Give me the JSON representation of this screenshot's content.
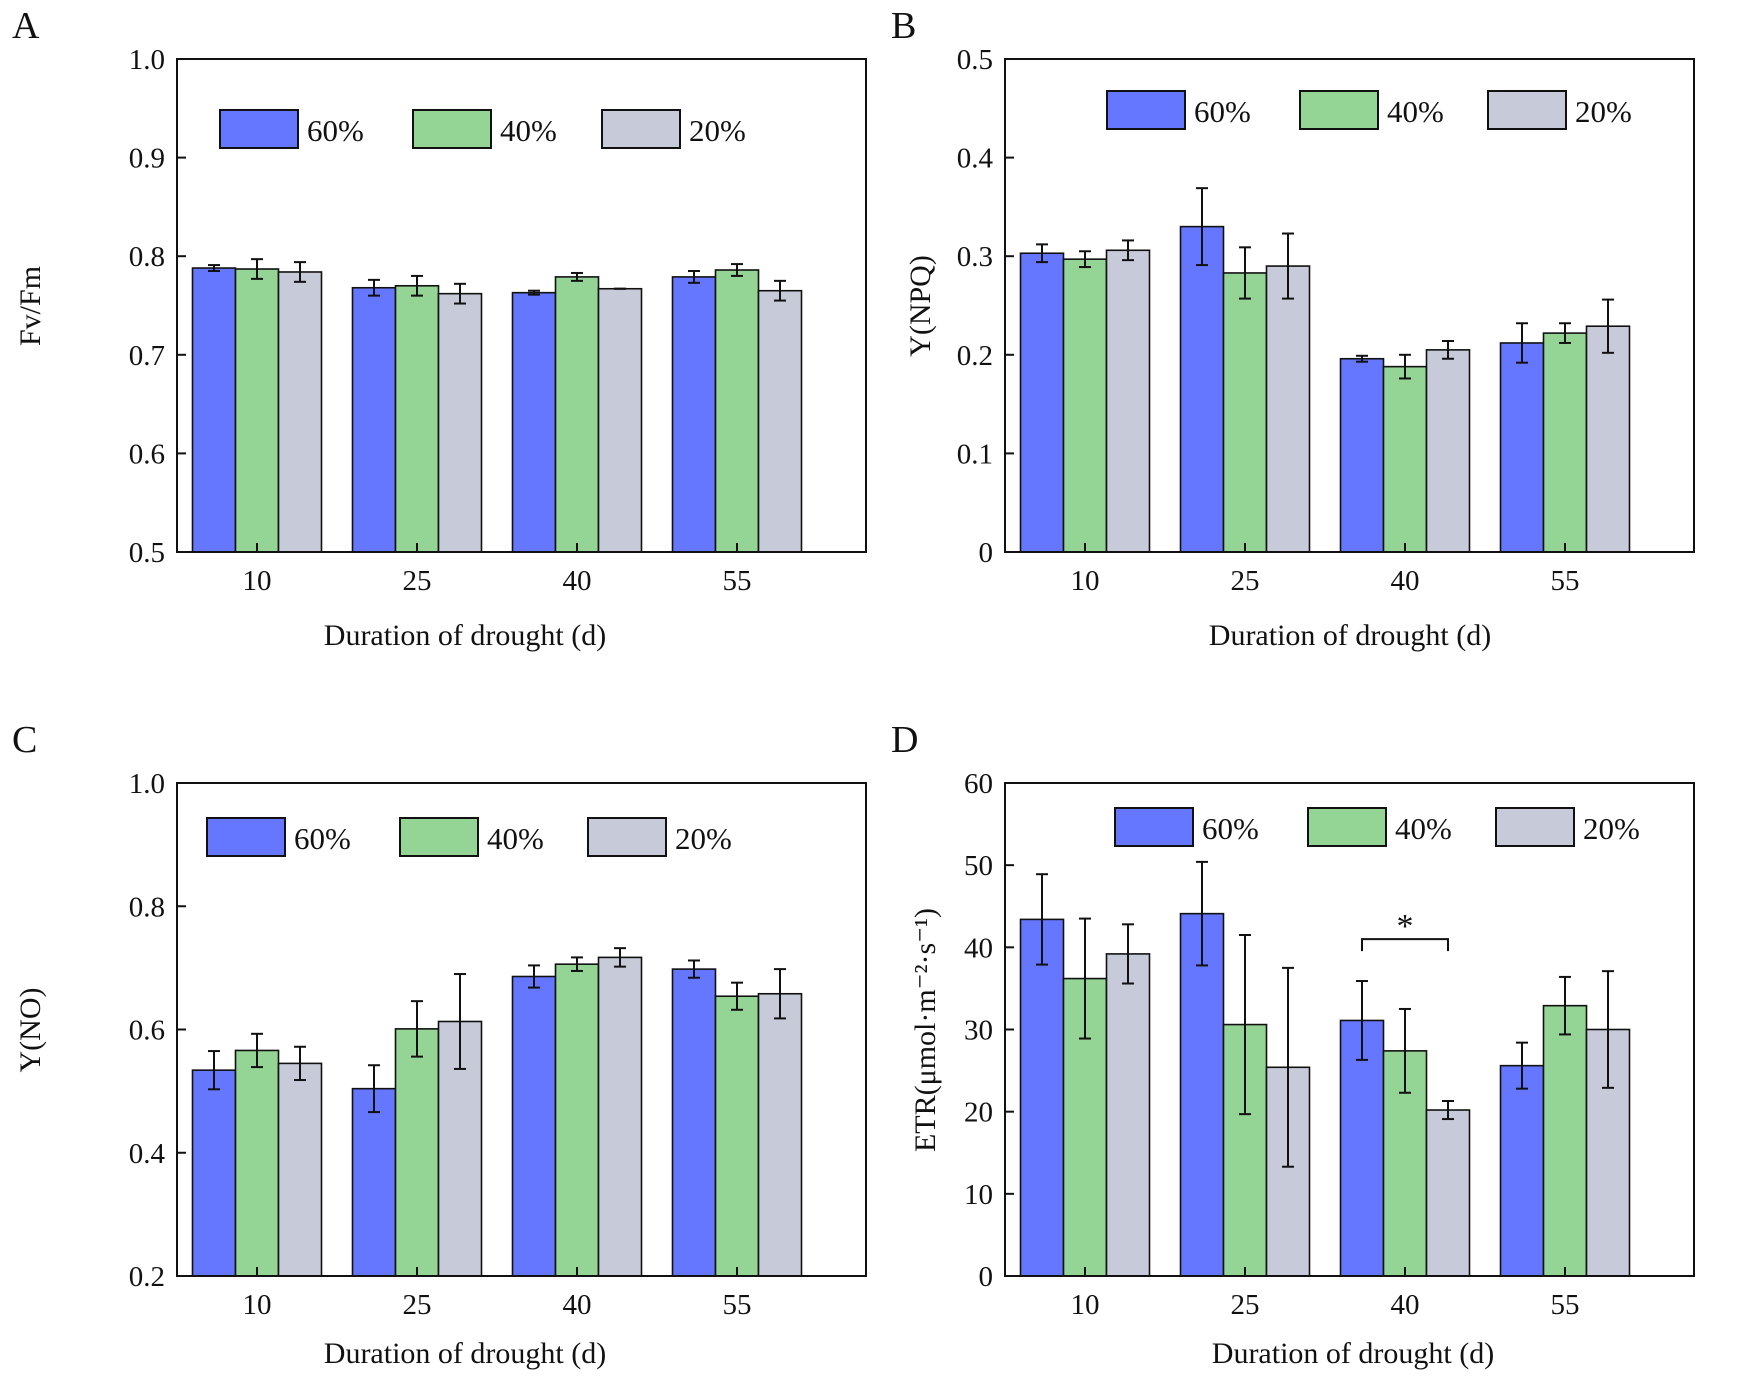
{
  "legend_labels": [
    "60%",
    "40%",
    "20%"
  ],
  "colors": {
    "s60": "#6677FF",
    "s40": "#94D494",
    "s20": "#C7CAD8",
    "axis": "#111111"
  },
  "chart_data": [
    {
      "panel": "A",
      "type": "bar",
      "categories": [
        "10",
        "25",
        "40",
        "55"
      ],
      "xlabel": "Duration of drought (d)",
      "ylabel": "Fv/Fm",
      "ylim": [
        0.5,
        1.0
      ],
      "yticks": [
        "0.5",
        "0.6",
        "0.7",
        "0.8",
        "0.9",
        "1.0"
      ],
      "legend_position": "top-center",
      "series": [
        {
          "name": "60%",
          "values": [
            0.788,
            0.768,
            0.763,
            0.779
          ],
          "errors": [
            0.003,
            0.008,
            0.002,
            0.006
          ]
        },
        {
          "name": "40%",
          "values": [
            0.787,
            0.77,
            0.779,
            0.786
          ],
          "errors": [
            0.01,
            0.01,
            0.004,
            0.006
          ]
        },
        {
          "name": "20%",
          "values": [
            0.784,
            0.762,
            0.767,
            0.765
          ],
          "errors": [
            0.01,
            0.01,
            0.0,
            0.01
          ]
        }
      ],
      "annotations": []
    },
    {
      "panel": "B",
      "type": "bar",
      "categories": [
        "10",
        "25",
        "40",
        "55"
      ],
      "xlabel": "Duration of drought (d)",
      "ylabel": "Y(NPQ)",
      "ylim": [
        0,
        0.5
      ],
      "yticks": [
        "0",
        "0.1",
        "0.2",
        "0.3",
        "0.4",
        "0.5"
      ],
      "legend_position": "top-center",
      "series": [
        {
          "name": "60%",
          "values": [
            0.303,
            0.33,
            0.196,
            0.212
          ],
          "errors": [
            0.009,
            0.039,
            0.003,
            0.02
          ]
        },
        {
          "name": "40%",
          "values": [
            0.297,
            0.283,
            0.188,
            0.222
          ],
          "errors": [
            0.008,
            0.026,
            0.012,
            0.01
          ]
        },
        {
          "name": "20%",
          "values": [
            0.306,
            0.29,
            0.205,
            0.229
          ],
          "errors": [
            0.01,
            0.033,
            0.009,
            0.027
          ]
        }
      ],
      "annotations": []
    },
    {
      "panel": "C",
      "type": "bar",
      "categories": [
        "10",
        "25",
        "40",
        "55"
      ],
      "xlabel": "Duration of drought (d)",
      "ylabel": "Y(NO)",
      "ylim": [
        0.2,
        1.0
      ],
      "yticks": [
        "0.2",
        "0.4",
        "0.6",
        "0.8",
        "1.0"
      ],
      "legend_position": "top-center",
      "series": [
        {
          "name": "60%",
          "values": [
            0.534,
            0.504,
            0.686,
            0.698
          ],
          "errors": [
            0.031,
            0.038,
            0.018,
            0.014
          ]
        },
        {
          "name": "40%",
          "values": [
            0.566,
            0.601,
            0.706,
            0.654
          ],
          "errors": [
            0.027,
            0.045,
            0.011,
            0.022
          ]
        },
        {
          "name": "20%",
          "values": [
            0.545,
            0.613,
            0.717,
            0.658
          ],
          "errors": [
            0.027,
            0.077,
            0.015,
            0.04
          ]
        }
      ],
      "annotations": []
    },
    {
      "panel": "D",
      "type": "bar",
      "categories": [
        "10",
        "25",
        "40",
        "55"
      ],
      "xlabel": "Duration of drought (d)",
      "ylabel": "ETR(μmol·m⁻²·s⁻¹)",
      "ylim": [
        0,
        60
      ],
      "yticks": [
        "0",
        "10",
        "20",
        "30",
        "40",
        "50",
        "60"
      ],
      "legend_position": "top-center",
      "series": [
        {
          "name": "60%",
          "values": [
            43.4,
            44.1,
            31.1,
            25.6
          ],
          "errors": [
            5.5,
            6.3,
            4.8,
            2.8
          ]
        },
        {
          "name": "40%",
          "values": [
            36.2,
            30.6,
            27.4,
            32.9
          ],
          "errors": [
            7.3,
            10.9,
            5.1,
            3.5
          ]
        },
        {
          "name": "20%",
          "values": [
            39.2,
            25.4,
            20.2,
            30.0
          ],
          "errors": [
            3.6,
            12.1,
            1.1,
            7.1
          ]
        }
      ],
      "annotations": [
        {
          "text": "*",
          "category": "40",
          "from_series": "60%",
          "to_series": "20%",
          "y": 41
        }
      ]
    }
  ]
}
